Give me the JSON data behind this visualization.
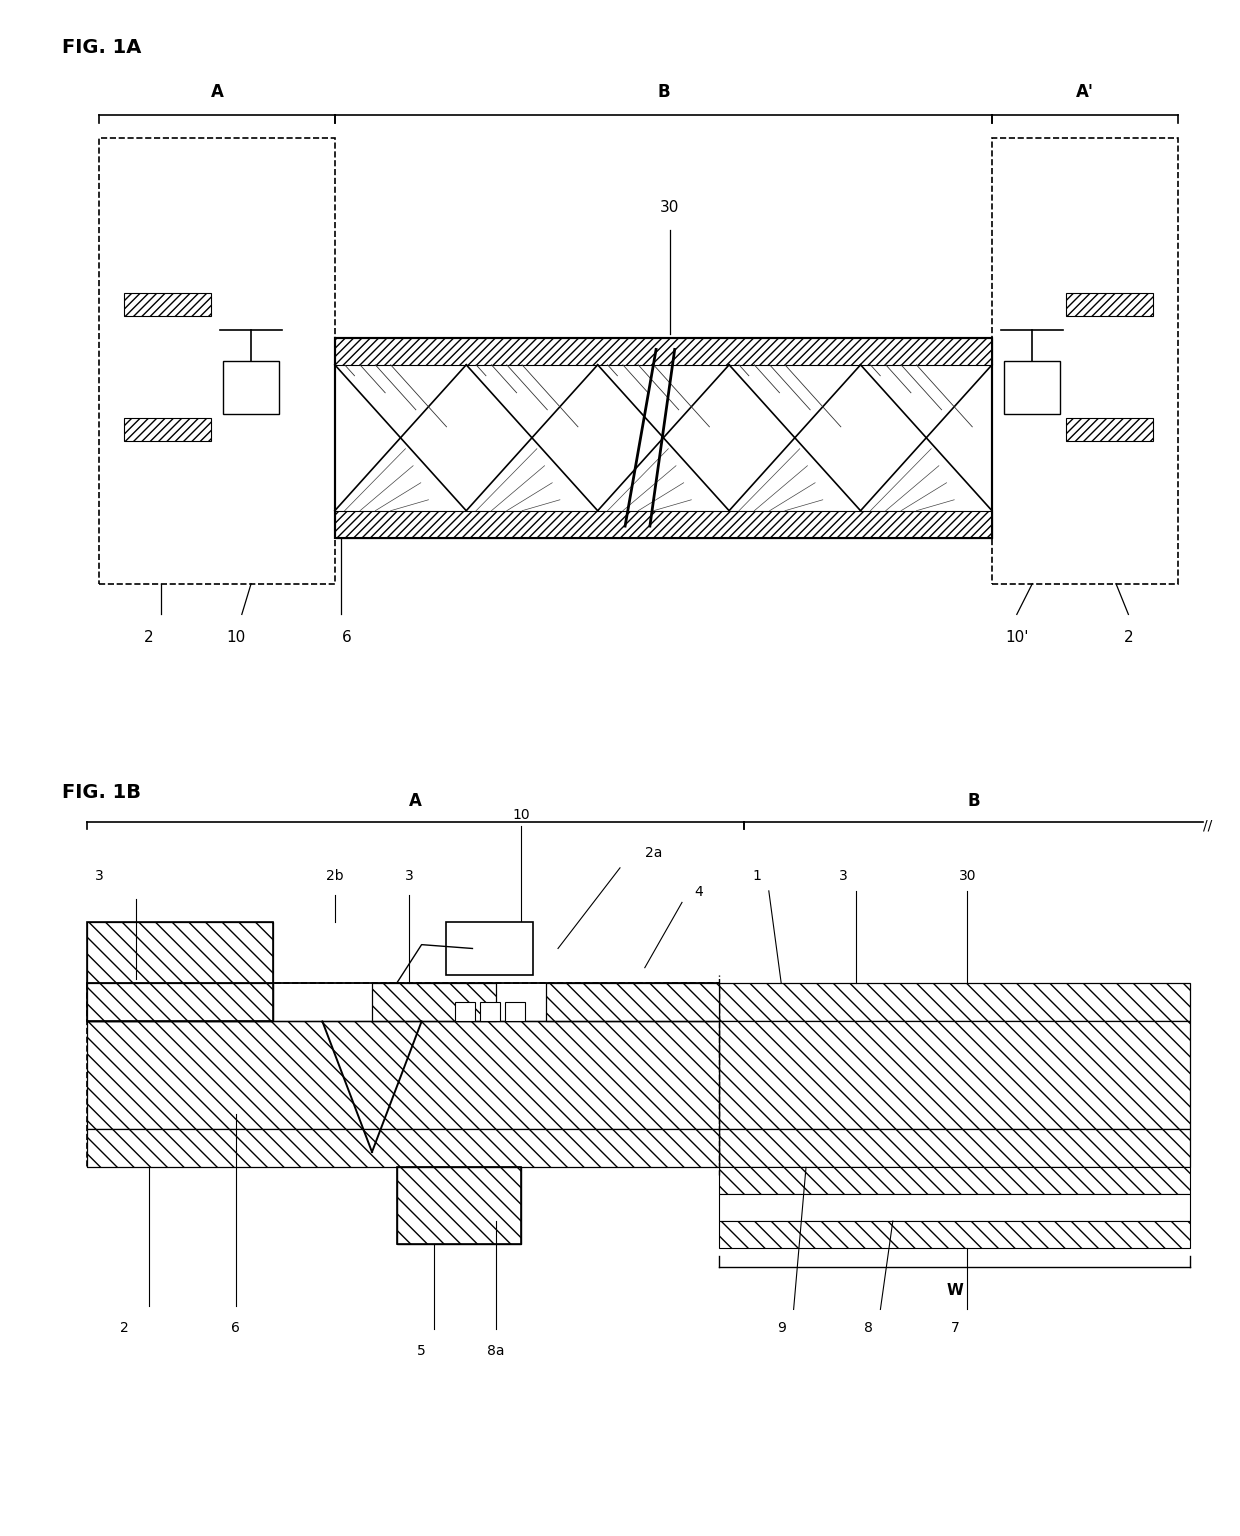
{
  "bg_color": "#ffffff",
  "fig1a": {
    "title": "FIG. 1A",
    "label_A": "A",
    "label_B": "B",
    "label_Ap": "A'",
    "label_30": "30",
    "label_2l": "2",
    "label_10l": "10",
    "label_6": "6",
    "label_10p": "10'",
    "label_2r": "2"
  },
  "fig1b": {
    "title": "FIG. 1B",
    "label_A": "A",
    "label_B": "B",
    "label_3a": "3",
    "label_2b": "2b",
    "label_3b": "3",
    "label_10": "10",
    "label_2a": "2a",
    "label_4": "4",
    "label_1": "1",
    "label_3c": "3",
    "label_30": "30",
    "label_2": "2",
    "label_6": "6",
    "label_5": "5",
    "label_8a": "8a",
    "label_9": "9",
    "label_8": "8",
    "label_7": "7",
    "label_W": "W"
  }
}
